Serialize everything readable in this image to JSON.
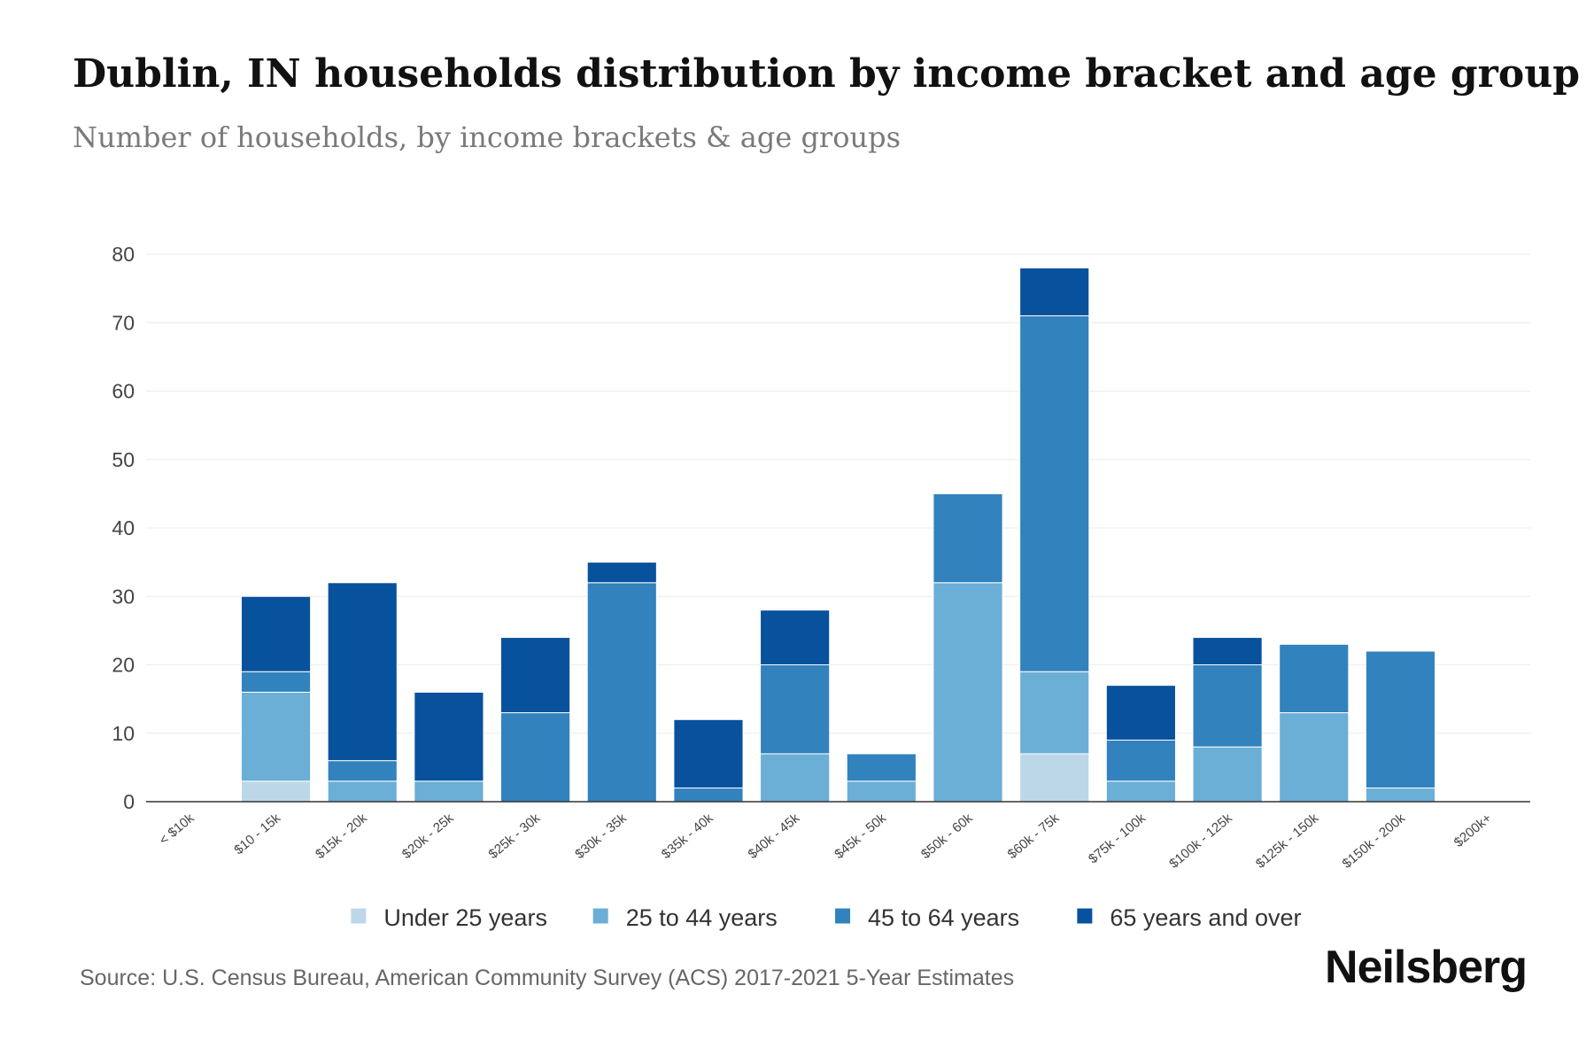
{
  "header": {
    "title": "Dublin, IN households distribution by income bracket and age group",
    "subtitle": "Number of households, by income brackets & age groups"
  },
  "footer": {
    "source": "Source: U.S. Census Bureau, American Community Survey (ACS) 2017-2021 5-Year Estimates",
    "brand": "Neilsberg"
  },
  "chart_data": {
    "type": "bar",
    "stacked": true,
    "title": "Dublin, IN households distribution by income bracket and age group",
    "subtitle": "Number of households, by income brackets & age groups",
    "xlabel": "",
    "ylabel": "",
    "ylim": [
      0,
      80
    ],
    "yticks": [
      0,
      10,
      20,
      30,
      40,
      50,
      60,
      70,
      80
    ],
    "grid": true,
    "legend_position": "bottom",
    "categories": [
      "< $10k",
      "$10 - 15k",
      "$15k - 20k",
      "$20k - 25k",
      "$25k - 30k",
      "$30k - 35k",
      "$35k - 40k",
      "$40k - 45k",
      "$45k - 50k",
      "$50k - 60k",
      "$60k - 75k",
      "$75k - 100k",
      "$100k - 125k",
      "$125k - 150k",
      "$150k - 200k",
      "$200k+"
    ],
    "series": [
      {
        "name": "Under 25 years",
        "color": "#bcd8e8",
        "values": [
          0,
          3,
          0,
          0,
          0,
          0,
          0,
          0,
          0,
          0,
          7,
          0,
          0,
          0,
          0,
          0
        ]
      },
      {
        "name": "25 to 44 years",
        "color": "#6baed6",
        "values": [
          0,
          13,
          3,
          3,
          0,
          0,
          0,
          7,
          3,
          32,
          12,
          3,
          8,
          13,
          2,
          0
        ]
      },
      {
        "name": "45 to 64 years",
        "color": "#3182bd",
        "values": [
          0,
          3,
          3,
          0,
          13,
          32,
          2,
          13,
          4,
          13,
          52,
          6,
          12,
          10,
          20,
          0
        ]
      },
      {
        "name": "65 years and over",
        "color": "#08519c",
        "values": [
          0,
          11,
          26,
          13,
          11,
          3,
          10,
          8,
          0,
          0,
          7,
          8,
          4,
          0,
          0,
          0
        ]
      }
    ]
  }
}
